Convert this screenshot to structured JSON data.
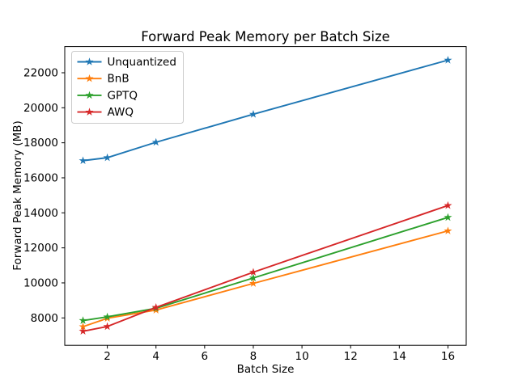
{
  "figure": {
    "title": "Forward Peak Memory per Batch Size",
    "xlabel": "Batch Size",
    "ylabel": "Forward Peak Memory (MB)",
    "background_color": "#ffffff"
  },
  "chart_data": {
    "type": "line",
    "title": "Forward Peak Memory per Batch Size",
    "xlabel": "Batch Size",
    "ylabel": "Forward Peak Memory (MB)",
    "x": [
      1,
      2,
      4,
      8,
      16
    ],
    "series": [
      {
        "name": "Unquantized",
        "color": "#1f77b4",
        "marker": "star",
        "values": [
          16980,
          17150,
          18030,
          19630,
          22720
        ]
      },
      {
        "name": "BnB",
        "color": "#ff7f0e",
        "marker": "star",
        "values": [
          7500,
          7980,
          8450,
          9970,
          12970
        ]
      },
      {
        "name": "GPTQ",
        "color": "#2ca02c",
        "marker": "star",
        "values": [
          7850,
          8060,
          8550,
          10280,
          13740
        ]
      },
      {
        "name": "AWQ",
        "color": "#d62728",
        "marker": "star",
        "values": [
          7240,
          7510,
          8600,
          10610,
          14420
        ]
      }
    ],
    "xticks": [
      2,
      4,
      6,
      8,
      10,
      12,
      14,
      16
    ],
    "yticks": [
      8000,
      10000,
      12000,
      14000,
      16000,
      18000,
      20000,
      22000
    ],
    "xlim": [
      0.25,
      16.75
    ],
    "ylim": [
      6435,
      23495
    ],
    "grid": false,
    "legend_position": "upper left",
    "axis_color": "#000000",
    "legend_border_color": "#cccccc"
  }
}
